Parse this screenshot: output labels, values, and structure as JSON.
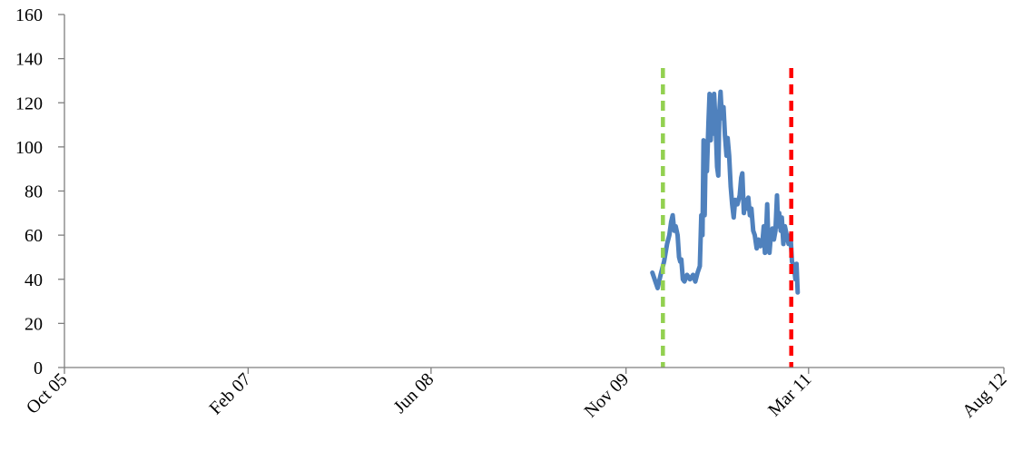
{
  "chart_data": {
    "type": "line",
    "title": "",
    "xlabel": "",
    "ylabel": "",
    "ylim": [
      0,
      160
    ],
    "yticks": [
      0,
      20,
      40,
      60,
      80,
      100,
      120,
      140,
      160
    ],
    "xlim": [
      "2005-10-01",
      "2012-08-01"
    ],
    "xticks": [
      {
        "label": "Oct 05",
        "date": "2005-10-01"
      },
      {
        "label": "Feb 07",
        "date": "2007-02-01"
      },
      {
        "label": "Jun 08",
        "date": "2008-06-01"
      },
      {
        "label": "Nov 09",
        "date": "2009-11-01"
      },
      {
        "label": "Mar 11",
        "date": "2011-03-01"
      },
      {
        "label": "Aug 12",
        "date": "2012-08-01"
      }
    ],
    "grid": false,
    "legend": "none",
    "series": [
      {
        "color": "#4f81bd",
        "points": [
          [
            "2010-01-10",
            43
          ],
          [
            "2010-01-18",
            39
          ],
          [
            "2010-01-24",
            36
          ],
          [
            "2010-02-01",
            42
          ],
          [
            "2010-02-10",
            48
          ],
          [
            "2010-02-18",
            56
          ],
          [
            "2010-02-24",
            60
          ],
          [
            "2010-03-01",
            66
          ],
          [
            "2010-03-05",
            69
          ],
          [
            "2010-03-09",
            62
          ],
          [
            "2010-03-13",
            64
          ],
          [
            "2010-03-18",
            60
          ],
          [
            "2010-03-22",
            50
          ],
          [
            "2010-03-25",
            48
          ],
          [
            "2010-03-28",
            49
          ],
          [
            "2010-04-01",
            40
          ],
          [
            "2010-04-05",
            39
          ],
          [
            "2010-04-12",
            42
          ],
          [
            "2010-04-20",
            40
          ],
          [
            "2010-04-28",
            42
          ],
          [
            "2010-05-04",
            39
          ],
          [
            "2010-05-10",
            43
          ],
          [
            "2010-05-16",
            46
          ],
          [
            "2010-05-20",
            69
          ],
          [
            "2010-05-23",
            60
          ],
          [
            "2010-05-26",
            103
          ],
          [
            "2010-05-29",
            69
          ],
          [
            "2010-06-01",
            102
          ],
          [
            "2010-06-04",
            89
          ],
          [
            "2010-06-08",
            111
          ],
          [
            "2010-06-11",
            124
          ],
          [
            "2010-06-14",
            103
          ],
          [
            "2010-06-17",
            118
          ],
          [
            "2010-06-20",
            106
          ],
          [
            "2010-06-23",
            124
          ],
          [
            "2010-06-27",
            110
          ],
          [
            "2010-07-01",
            91
          ],
          [
            "2010-07-04",
            87
          ],
          [
            "2010-07-07",
            116
          ],
          [
            "2010-07-10",
            125
          ],
          [
            "2010-07-14",
            113
          ],
          [
            "2010-07-18",
            118
          ],
          [
            "2010-07-22",
            105
          ],
          [
            "2010-07-26",
            96
          ],
          [
            "2010-07-29",
            104
          ],
          [
            "2010-08-02",
            96
          ],
          [
            "2010-08-06",
            82
          ],
          [
            "2010-08-10",
            74
          ],
          [
            "2010-08-14",
            68
          ],
          [
            "2010-08-18",
            76
          ],
          [
            "2010-08-24",
            74
          ],
          [
            "2010-08-30",
            78
          ],
          [
            "2010-09-03",
            86
          ],
          [
            "2010-09-06",
            88
          ],
          [
            "2010-09-10",
            70
          ],
          [
            "2010-09-14",
            76
          ],
          [
            "2010-09-18",
            72
          ],
          [
            "2010-09-22",
            77
          ],
          [
            "2010-09-26",
            69
          ],
          [
            "2010-09-30",
            72
          ],
          [
            "2010-10-05",
            62
          ],
          [
            "2010-10-09",
            60
          ],
          [
            "2010-10-14",
            54
          ],
          [
            "2010-10-19",
            58
          ],
          [
            "2010-10-24",
            55
          ],
          [
            "2010-10-29",
            56
          ],
          [
            "2010-11-02",
            64
          ],
          [
            "2010-11-05",
            52
          ],
          [
            "2010-11-08",
            60
          ],
          [
            "2010-11-11",
            74
          ],
          [
            "2010-11-14",
            58
          ],
          [
            "2010-11-17",
            52
          ],
          [
            "2010-11-21",
            60
          ],
          [
            "2010-11-25",
            63
          ],
          [
            "2010-11-29",
            58
          ],
          [
            "2010-12-03",
            62
          ],
          [
            "2010-12-07",
            78
          ],
          [
            "2010-12-10",
            64
          ],
          [
            "2010-12-13",
            70
          ],
          [
            "2010-12-17",
            62
          ],
          [
            "2010-12-20",
            68
          ],
          [
            "2010-12-24",
            56
          ],
          [
            "2010-12-28",
            64
          ],
          [
            "2011-01-02",
            60
          ],
          [
            "2011-01-07",
            56
          ],
          [
            "2011-01-12",
            60
          ],
          [
            "2011-01-16",
            48
          ],
          [
            "2011-01-21",
            46
          ],
          [
            "2011-01-25",
            40
          ],
          [
            "2011-01-28",
            47
          ],
          [
            "2011-01-31",
            34
          ]
        ]
      }
    ],
    "markers": [
      {
        "date": "2010-02-07",
        "color": "#92d050",
        "style": "dashed"
      },
      {
        "date": "2011-01-14",
        "color": "#ff0000",
        "style": "dashed"
      }
    ]
  }
}
